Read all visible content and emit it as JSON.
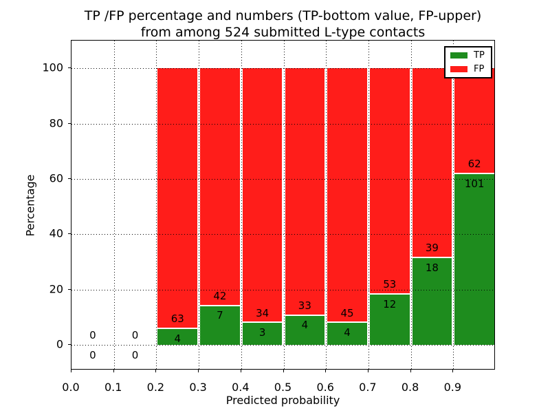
{
  "figure": {
    "title_line1": "TP /FP percentage and numbers (TP-bottom value, FP-upper)",
    "title_line2": "from among 524 submitted L-type contacts",
    "xlabel": "Predicted probability",
    "ylabel": "Percentage"
  },
  "legend": {
    "position": "upper right",
    "items": [
      {
        "label": "TP",
        "color": "#1e8c1e"
      },
      {
        "label": "FP",
        "color": "#ff1d1a"
      }
    ]
  },
  "chart_data": {
    "type": "bar",
    "subtype": "stacked-percentage-histogram",
    "title": "TP /FP percentage and numbers (TP-bottom value, FP-upper) from among 524 submitted L-type contacts",
    "xlabel": "Predicted probability",
    "ylabel": "Percentage",
    "total_contacts": 524,
    "bin_width": 0.1,
    "categories": [
      "0.0-0.1",
      "0.1-0.2",
      "0.2-0.3",
      "0.3-0.4",
      "0.4-0.5",
      "0.5-0.6",
      "0.6-0.7",
      "0.7-0.8",
      "0.8-0.9",
      "0.9-1.0"
    ],
    "series": [
      {
        "name": "TP",
        "color": "#1e8c1e",
        "counts": [
          0,
          0,
          4,
          7,
          3,
          4,
          4,
          12,
          18,
          101
        ]
      },
      {
        "name": "FP",
        "color": "#ff1d1a",
        "counts": [
          0,
          0,
          63,
          42,
          34,
          33,
          45,
          53,
          39,
          62
        ]
      }
    ],
    "tp_percent": [
      0,
      0,
      5.97,
      14.29,
      8.11,
      10.81,
      8.16,
      18.46,
      31.58,
      61.96
    ],
    "bar_label_rule": "FP count above TP/FP boundary, TP count below boundary",
    "xlim": [
      0.0,
      1.0
    ],
    "ylim": [
      -9.2,
      110
    ],
    "xticks": [
      "0.0",
      "0.1",
      "0.2",
      "0.3",
      "0.4",
      "0.5",
      "0.6",
      "0.7",
      "0.8",
      "0.9"
    ],
    "yticks": [
      0,
      20,
      40,
      60,
      80,
      100
    ],
    "grid": "dotted",
    "legend_position": "upper right"
  }
}
